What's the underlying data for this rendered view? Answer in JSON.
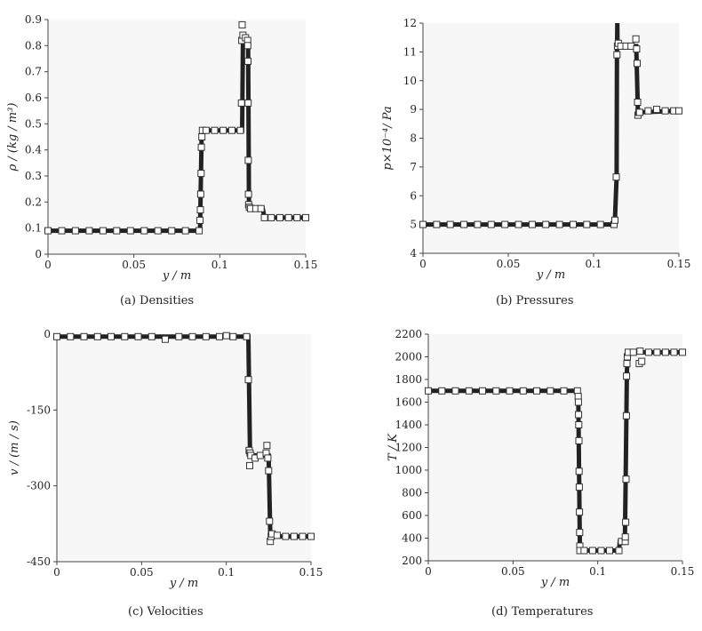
{
  "chart_data": [
    {
      "id": "a",
      "type": "scatter",
      "caption": "(a) Densities",
      "xlabel": "y / m",
      "ylabel": "ρ / (kg / m³)",
      "xlim": [
        0,
        0.15
      ],
      "ylim": [
        0,
        0.9
      ],
      "xticks": [
        0,
        0.05,
        0.1,
        0.15
      ],
      "xtick_labels": [
        "0",
        "0.05",
        "0.1",
        "0.15"
      ],
      "yticks": [
        0,
        0.1,
        0.2,
        0.3,
        0.4,
        0.5,
        0.6,
        0.7,
        0.8,
        0.9
      ],
      "ytick_labels": [
        "0",
        "0.1",
        "0.2",
        "0.3",
        "0.4",
        "0.5",
        "0.6",
        "0.7",
        "0.8",
        "0.9"
      ],
      "grid": false,
      "line": {
        "x": [
          0,
          0.0885,
          0.0895,
          0.113,
          0.1135,
          0.115,
          0.1165,
          0.117,
          0.118,
          0.125,
          0.126,
          0.15
        ],
        "y": [
          0.09,
          0.09,
          0.475,
          0.475,
          0.82,
          0.83,
          0.82,
          0.18,
          0.175,
          0.175,
          0.14,
          0.14
        ]
      },
      "series": [
        {
          "name": "markers",
          "x": [
            0,
            0.008,
            0.016,
            0.024,
            0.032,
            0.04,
            0.048,
            0.056,
            0.064,
            0.072,
            0.08,
            0.088,
            0.0885,
            0.0887,
            0.0889,
            0.0891,
            0.0893,
            0.0896,
            0.0899,
            0.092,
            0.097,
            0.102,
            0.107,
            0.112,
            0.1126,
            0.1128,
            0.113,
            0.1135,
            0.115,
            0.1162,
            0.1163,
            0.1164,
            0.1165,
            0.1166,
            0.1167,
            0.1168,
            0.1172,
            0.118,
            0.121,
            0.124,
            0.126,
            0.13,
            0.135,
            0.14,
            0.145,
            0.15
          ],
          "y": [
            0.09,
            0.09,
            0.09,
            0.09,
            0.09,
            0.09,
            0.09,
            0.09,
            0.09,
            0.09,
            0.09,
            0.09,
            0.13,
            0.17,
            0.23,
            0.31,
            0.41,
            0.45,
            0.475,
            0.475,
            0.475,
            0.475,
            0.475,
            0.475,
            0.58,
            0.82,
            0.88,
            0.84,
            0.83,
            0.82,
            0.8,
            0.74,
            0.58,
            0.36,
            0.23,
            0.19,
            0.18,
            0.175,
            0.175,
            0.175,
            0.14,
            0.14,
            0.14,
            0.14,
            0.14,
            0.14
          ]
        }
      ]
    },
    {
      "id": "b",
      "type": "scatter",
      "caption": "(b) Pressures",
      "xlabel": "y / m",
      "ylabel": "p×10⁻⁴/ Pa",
      "xlim": [
        0,
        0.15
      ],
      "ylim": [
        4,
        12
      ],
      "xticks": [
        0,
        0.05,
        0.1,
        0.15
      ],
      "xtick_labels": [
        "0",
        "0.05",
        "0.1",
        "0.15"
      ],
      "yticks": [
        4,
        5,
        6,
        7,
        8,
        9,
        10,
        11,
        12
      ],
      "ytick_labels": [
        "4",
        "5",
        "6",
        "7",
        "8",
        "9",
        "10",
        "11",
        "12"
      ],
      "grid": false,
      "line": {
        "x": [
          0,
          0.112,
          0.1125,
          0.1135,
          0.1137,
          0.1139,
          0.114,
          0.1145,
          0.1146,
          0.115,
          0.125,
          0.126,
          0.15
        ],
        "y": [
          5,
          5,
          5.15,
          6.65,
          10.9,
          12,
          11.2,
          11.2,
          11.2,
          11.2,
          11.2,
          8.9,
          8.95
        ]
      },
      "series": [
        {
          "name": "markers",
          "x": [
            0,
            0.008,
            0.016,
            0.024,
            0.032,
            0.04,
            0.048,
            0.056,
            0.064,
            0.072,
            0.08,
            0.088,
            0.096,
            0.104,
            0.112,
            0.1125,
            0.1133,
            0.1137,
            0.114,
            0.1145,
            0.116,
            0.119,
            0.122,
            0.1248,
            0.1252,
            0.1255,
            0.1258,
            0.126,
            0.1265,
            0.127,
            0.132,
            0.137,
            0.142,
            0.147,
            0.15
          ],
          "y": [
            5,
            5,
            5,
            5,
            5,
            5,
            5,
            5,
            5,
            5,
            5,
            5,
            5,
            5,
            5,
            5.15,
            6.65,
            10.9,
            11.2,
            11.3,
            11.2,
            11.2,
            11.2,
            11.45,
            11.1,
            10.6,
            9.25,
            8.8,
            8.9,
            8.9,
            8.95,
            9.0,
            8.95,
            8.95,
            8.95
          ]
        }
      ]
    },
    {
      "id": "c",
      "type": "scatter",
      "caption": "(c) Velocities",
      "xlabel": "y / m",
      "ylabel": "v / (m / s)",
      "xlim": [
        0,
        0.15
      ],
      "ylim": [
        -450,
        0
      ],
      "xticks": [
        0,
        0.05,
        0.1,
        0.15
      ],
      "xtick_labels": [
        "0",
        "0.05",
        "0.1",
        "0.15"
      ],
      "yticks": [
        0,
        -150,
        -300,
        -450
      ],
      "ytick_labels": [
        "0",
        "-150",
        "-300",
        "-450"
      ],
      "grid": false,
      "line": {
        "x": [
          0,
          0.113,
          0.114,
          0.115,
          0.12,
          0.125,
          0.126,
          0.128,
          0.15
        ],
        "y": [
          -5,
          -5,
          -240,
          -240,
          -240,
          -240,
          -400,
          -400,
          -400
        ]
      },
      "series": [
        {
          "name": "markers",
          "x": [
            0,
            0.008,
            0.016,
            0.024,
            0.032,
            0.04,
            0.048,
            0.056,
            0.064,
            0.072,
            0.08,
            0.088,
            0.096,
            0.1,
            0.104,
            0.112,
            0.113,
            0.1135,
            0.1138,
            0.114,
            0.1145,
            0.117,
            0.12,
            0.1235,
            0.124,
            0.1245,
            0.125,
            0.1255,
            0.126,
            0.1265,
            0.127,
            0.13,
            0.135,
            0.14,
            0.145,
            0.15
          ],
          "y": [
            -5,
            -5,
            -5,
            -5,
            -5,
            -5,
            -5,
            -5,
            -10,
            -5,
            -5,
            -5,
            -5,
            -3,
            -5,
            -5,
            -90,
            -230,
            -260,
            -235,
            -240,
            -245,
            -240,
            -235,
            -220,
            -245,
            -270,
            -370,
            -410,
            -400,
            -395,
            -398,
            -400,
            -400,
            -400,
            -400
          ]
        }
      ]
    },
    {
      "id": "d",
      "type": "scatter",
      "caption": "(d) Temperatures",
      "xlabel": "y / m",
      "ylabel": "T / K",
      "xlim": [
        0,
        0.15
      ],
      "ylim": [
        200,
        2200
      ],
      "xticks": [
        0,
        0.05,
        0.1,
        0.15
      ],
      "xtick_labels": [
        "0",
        "0.05",
        "0.1",
        "0.15"
      ],
      "yticks": [
        200,
        400,
        600,
        800,
        1000,
        1200,
        1400,
        1600,
        1800,
        2000,
        2200
      ],
      "ytick_labels": [
        "200",
        "400",
        "600",
        "800",
        "1000",
        "1200",
        "1400",
        "1600",
        "1800",
        "2000",
        "2200"
      ],
      "grid": false,
      "line": {
        "x": [
          0,
          0.0885,
          0.0895,
          0.1125,
          0.113,
          0.116,
          0.1165,
          0.1172,
          0.118,
          0.125,
          0.15
        ],
        "y": [
          1700,
          1700,
          290,
          290,
          370,
          370,
          920,
          1880,
          2040,
          2040,
          2040
        ]
      },
      "series": [
        {
          "name": "markers",
          "x": [
            0,
            0.008,
            0.016,
            0.024,
            0.032,
            0.04,
            0.048,
            0.056,
            0.064,
            0.072,
            0.08,
            0.088,
            0.0885,
            0.0886,
            0.0887,
            0.0888,
            0.0889,
            0.089,
            0.0891,
            0.0892,
            0.0893,
            0.0894,
            0.0895,
            0.092,
            0.097,
            0.102,
            0.107,
            0.1125,
            0.114,
            0.1162,
            0.1163,
            0.1165,
            0.1167,
            0.1169,
            0.117,
            0.1172,
            0.1175,
            0.118,
            0.121,
            0.1245,
            0.125,
            0.126,
            0.13,
            0.135,
            0.14,
            0.145,
            0.15
          ],
          "y": [
            1700,
            1700,
            1700,
            1700,
            1700,
            1700,
            1700,
            1700,
            1700,
            1700,
            1700,
            1700,
            1650,
            1600,
            1490,
            1400,
            1260,
            990,
            850,
            630,
            450,
            330,
            290,
            290,
            290,
            290,
            290,
            290,
            370,
            370,
            410,
            540,
            920,
            1480,
            1830,
            1940,
            2000,
            2040,
            2040,
            1940,
            2050,
            1960,
            2040,
            2040,
            2040,
            2040,
            2040
          ]
        }
      ]
    }
  ]
}
